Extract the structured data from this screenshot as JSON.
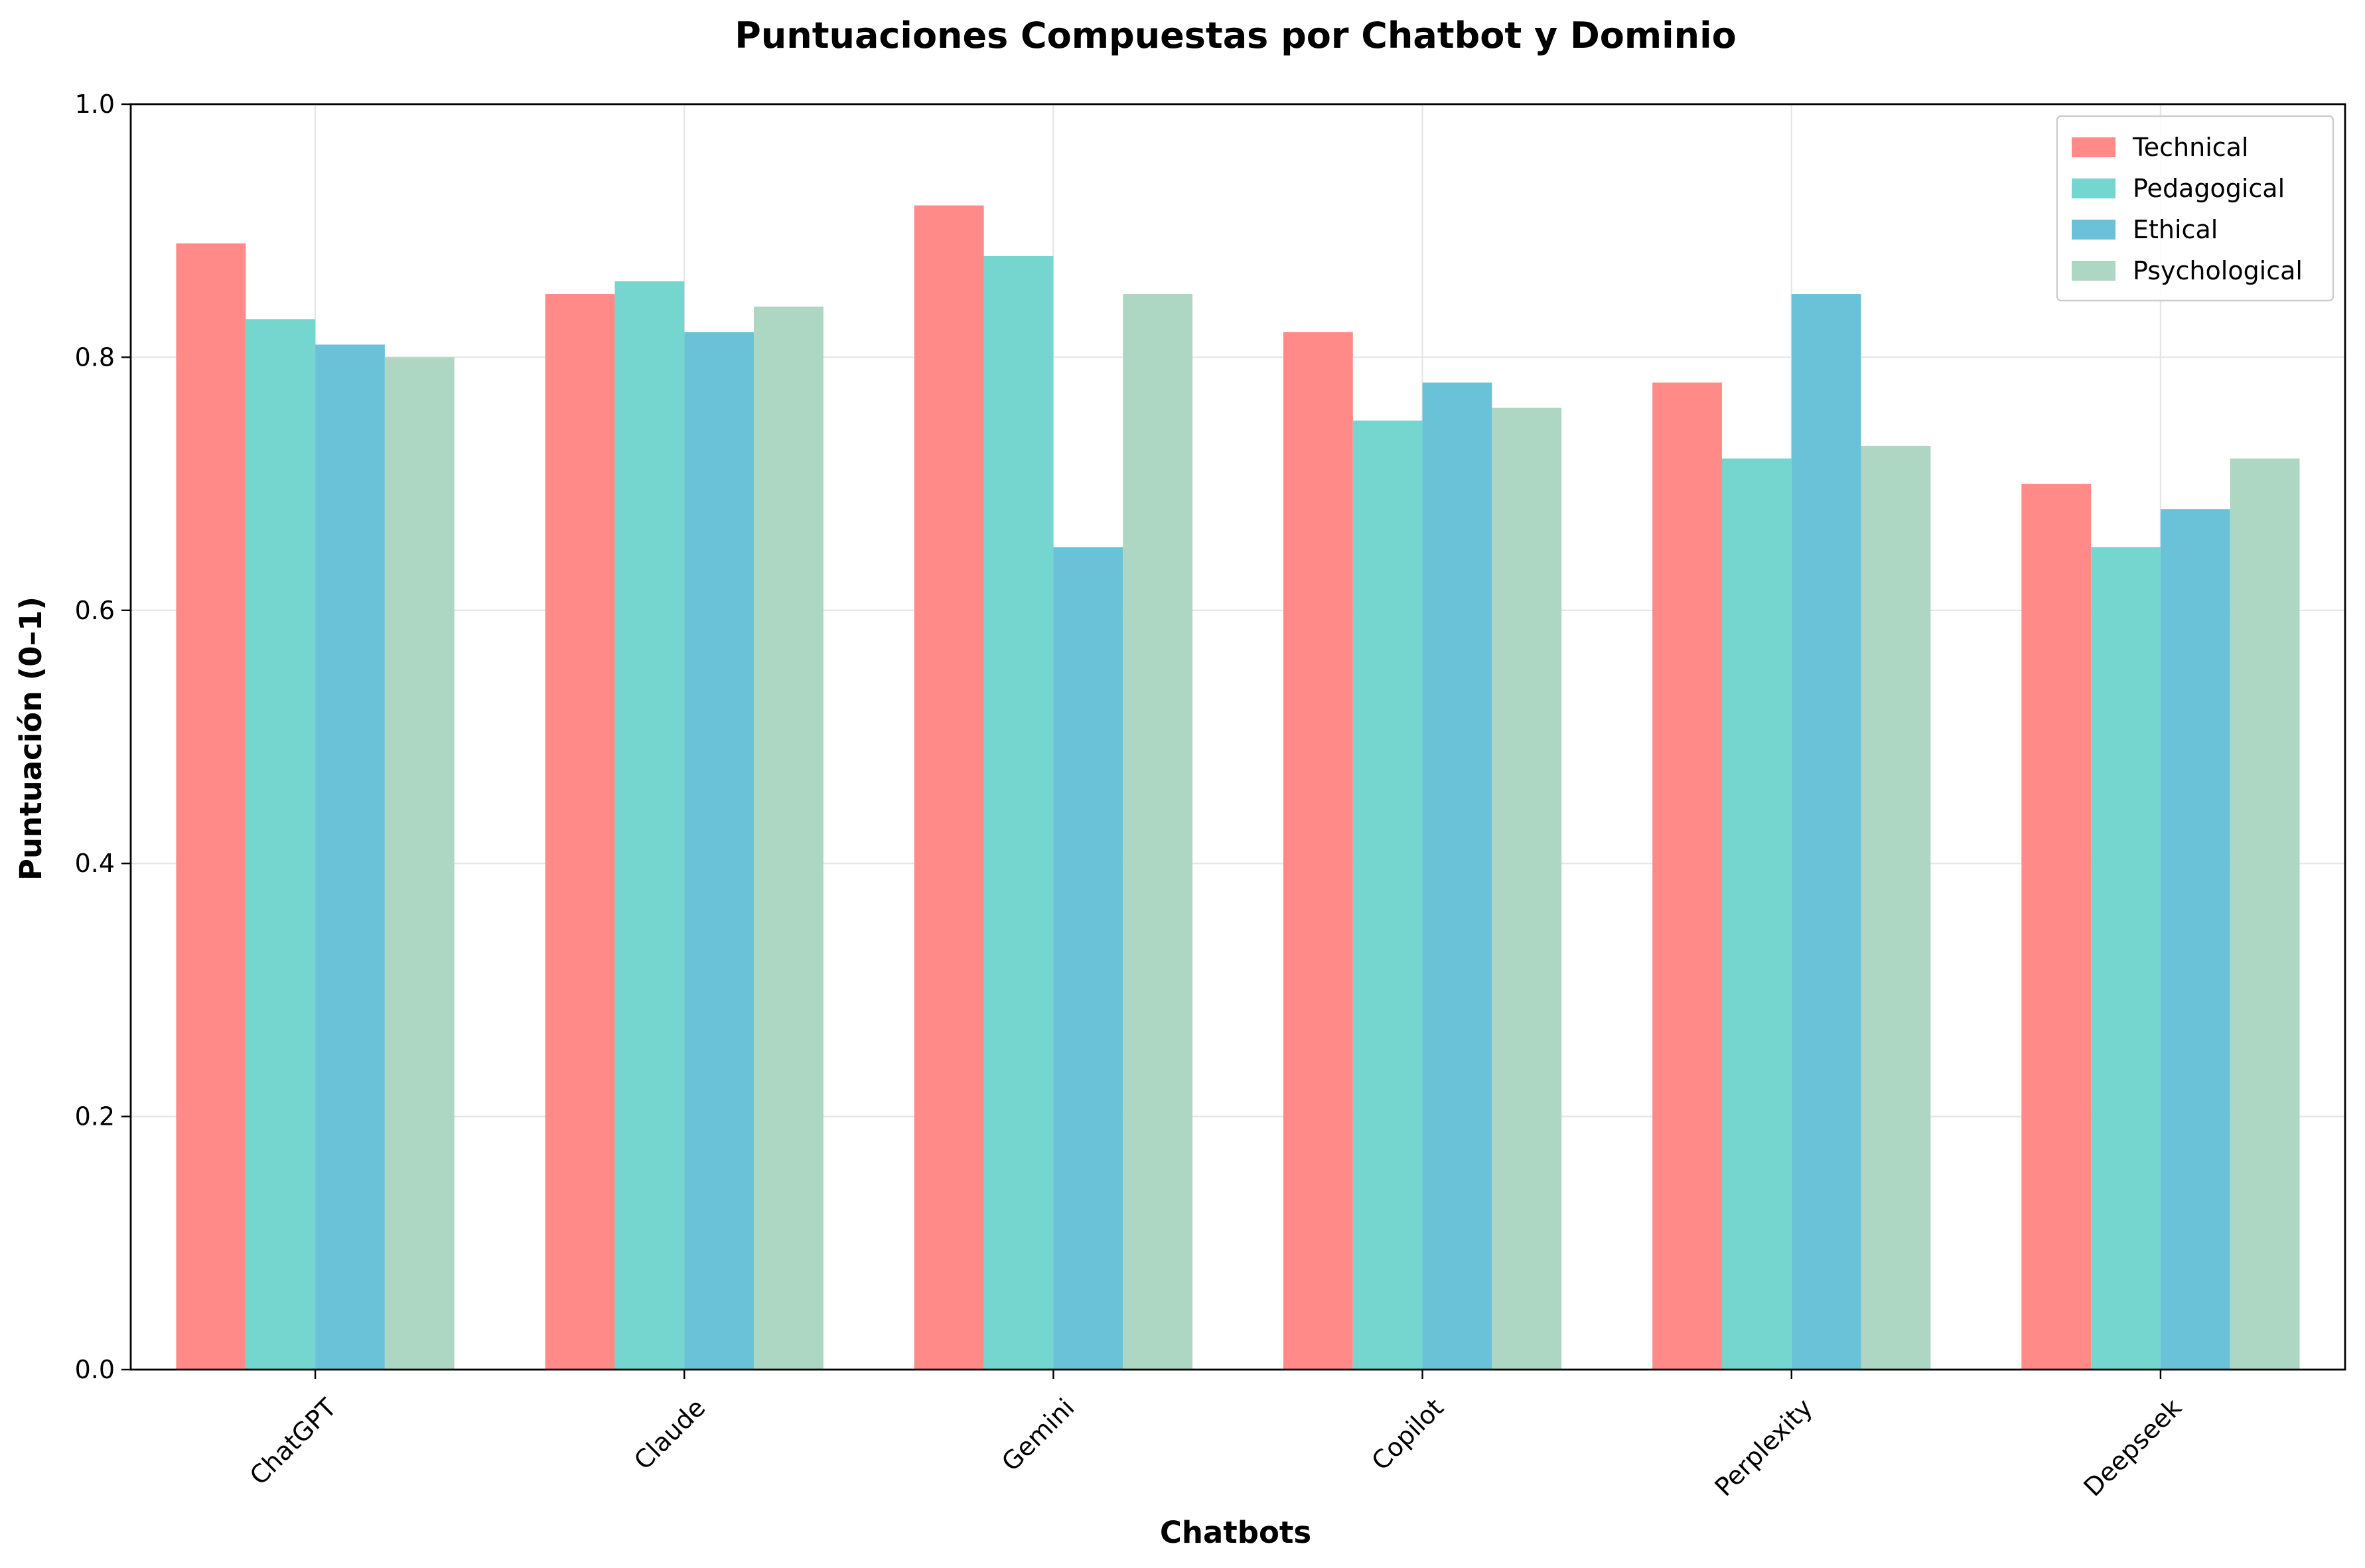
{
  "chart_data": {
    "type": "bar",
    "title": "Puntuaciones Compuestas por Chatbot y Dominio",
    "xlabel": "Chatbots",
    "ylabel": "Puntuación (0–1)",
    "ylim": [
      0,
      1.0
    ],
    "yticks": [
      "0.0",
      "0.2",
      "0.4",
      "0.6",
      "0.8",
      "1.0"
    ],
    "grid": true,
    "legend_position": "top-right",
    "categories": [
      "ChatGPT",
      "Claude",
      "Gemini",
      "Copilot",
      "Perplexity",
      "Deepseek"
    ],
    "series": [
      {
        "name": "Technical",
        "color": "#FF8A87",
        "values": [
          0.89,
          0.85,
          0.92,
          0.82,
          0.78,
          0.7
        ]
      },
      {
        "name": "Pedagogical",
        "color": "#74D6CE",
        "values": [
          0.83,
          0.86,
          0.88,
          0.75,
          0.72,
          0.65
        ]
      },
      {
        "name": "Ethical",
        "color": "#6AC2D8",
        "values": [
          0.81,
          0.82,
          0.65,
          0.78,
          0.85,
          0.68
        ]
      },
      {
        "name": "Psychological",
        "color": "#ADD6C3",
        "values": [
          0.8,
          0.84,
          0.85,
          0.76,
          0.73,
          0.72
        ]
      }
    ]
  }
}
